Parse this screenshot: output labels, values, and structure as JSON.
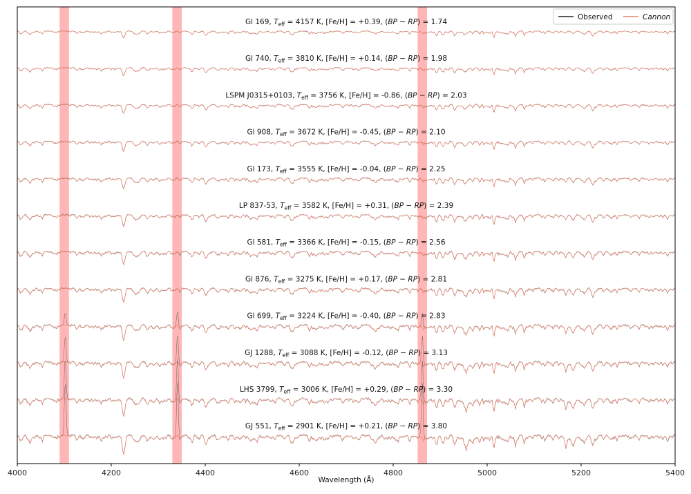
{
  "chart_data": {
    "type": "line",
    "title": "",
    "xlabel": "Wavelength (Å)",
    "ylabel": "",
    "xlim": [
      4000,
      5400
    ],
    "x_ticks": [
      "4000",
      "4200",
      "4400",
      "4600",
      "4800",
      "5000",
      "5200",
      "5400"
    ],
    "grid": false,
    "legend_position": "top-right",
    "legend": [
      {
        "name": "Observed",
        "color": "#222222",
        "style": "normal"
      },
      {
        "name": "Cannon",
        "color": "#e8826a",
        "style": "italic"
      }
    ],
    "shaded_regions": [
      {
        "x_range": [
          4090,
          4110
        ],
        "color": "#ff9d9d"
      },
      {
        "x_range": [
          4330,
          4350
        ],
        "color": "#ff9d9d"
      },
      {
        "x_range": [
          4852,
          4872
        ],
        "color": "#ff9d9d"
      }
    ],
    "teff_symbol": "T",
    "teff_subscript": "eff",
    "stars": [
      {
        "name": "Gl 169",
        "teff": "4157",
        "feh": "+0.39",
        "color": "1.74"
      },
      {
        "name": "Gl 740",
        "teff": "3810",
        "feh": "+0.14",
        "color": "1.98"
      },
      {
        "name": "LSPM J0315+0103",
        "teff": "3756",
        "feh": "-0.86",
        "color": "2.03"
      },
      {
        "name": "Gl 908",
        "teff": "3672",
        "feh": "-0.45",
        "color": "2.10"
      },
      {
        "name": "Gl 173",
        "teff": "3555",
        "feh": "-0.04",
        "color": "2.25"
      },
      {
        "name": "LP 837-53",
        "teff": "3582",
        "feh": "+0.31",
        "color": "2.39"
      },
      {
        "name": "Gl 581",
        "teff": "3366",
        "feh": "-0.15",
        "color": "2.56"
      },
      {
        "name": "Gl 876",
        "teff": "3275",
        "feh": "+0.17",
        "color": "2.81"
      },
      {
        "name": "Gl 699",
        "teff": "3224",
        "feh": "-0.40",
        "color": "2.83"
      },
      {
        "name": "GJ 1288",
        "teff": "3088",
        "feh": "-0.12",
        "color": "3.13"
      },
      {
        "name": "LHS 3799",
        "teff": "3006",
        "feh": "+0.29",
        "color": "3.30"
      },
      {
        "name": "GJ 551",
        "teff": "2901",
        "feh": "+0.21",
        "color": "3.80"
      }
    ]
  }
}
